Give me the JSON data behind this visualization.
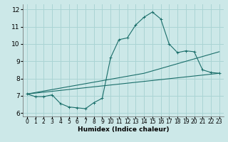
{
  "title": "",
  "xlabel": "Humidex (Indice chaleur)",
  "ylabel": "",
  "bg_color": "#cce8e8",
  "line_color": "#1a6e6a",
  "grid_color": "#aad4d4",
  "xlim": [
    -0.5,
    23.5
  ],
  "ylim": [
    5.8,
    12.3
  ],
  "xticks": [
    0,
    1,
    2,
    3,
    4,
    5,
    6,
    7,
    8,
    9,
    10,
    11,
    12,
    13,
    14,
    15,
    16,
    17,
    18,
    19,
    20,
    21,
    22,
    23
  ],
  "yticks": [
    6,
    7,
    8,
    9,
    10,
    11,
    12
  ],
  "line1_x": [
    0,
    1,
    2,
    3,
    4,
    5,
    6,
    7,
    8,
    9,
    10,
    11,
    12,
    13,
    14,
    15,
    16,
    17,
    18,
    19,
    20,
    21,
    22,
    23
  ],
  "line1_y": [
    7.1,
    6.95,
    6.95,
    7.05,
    6.55,
    6.35,
    6.3,
    6.25,
    6.6,
    6.85,
    9.2,
    10.25,
    10.35,
    11.1,
    11.55,
    11.85,
    11.45,
    10.0,
    9.5,
    9.6,
    9.55,
    8.5,
    8.35,
    8.3
  ],
  "line2_x": [
    0,
    23
  ],
  "line2_y": [
    7.1,
    8.3
  ],
  "line3_x": [
    0,
    14,
    23
  ],
  "line3_y": [
    7.1,
    8.3,
    9.55
  ],
  "tick_fontsize": 5.5,
  "xlabel_fontsize": 6.5,
  "linewidth": 0.8,
  "marker_size": 3
}
